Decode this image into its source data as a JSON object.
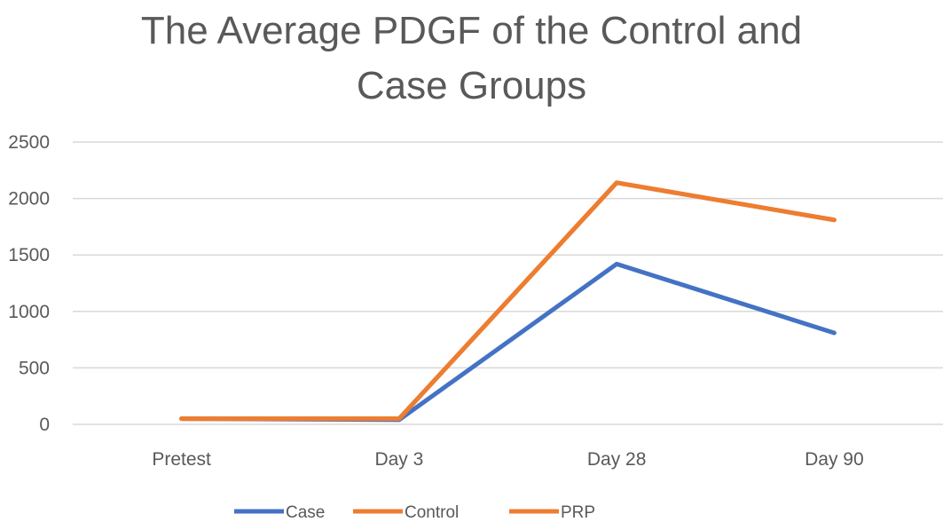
{
  "chart_data": {
    "type": "line",
    "title_lines": [
      "The Average PDGF of the Control and",
      "Case Groups"
    ],
    "categories": [
      "Pretest",
      "Day 3",
      "Day 28",
      "Day 90"
    ],
    "ylim": [
      0,
      2500
    ],
    "yticks": [
      0,
      500,
      1000,
      1500,
      2000,
      2500
    ],
    "grid": true,
    "legend_position": "bottom",
    "series": [
      {
        "name": "Case",
        "color": "#4472C4",
        "values": [
          50,
          40,
          1420,
          810
        ]
      },
      {
        "name": "Control",
        "color": "#ED7D31",
        "values": [
          50,
          50,
          2140,
          1810
        ]
      },
      {
        "name": "PRP",
        "color": "#ED7D31",
        "values": [
          50,
          50,
          2140,
          1810
        ]
      }
    ]
  }
}
